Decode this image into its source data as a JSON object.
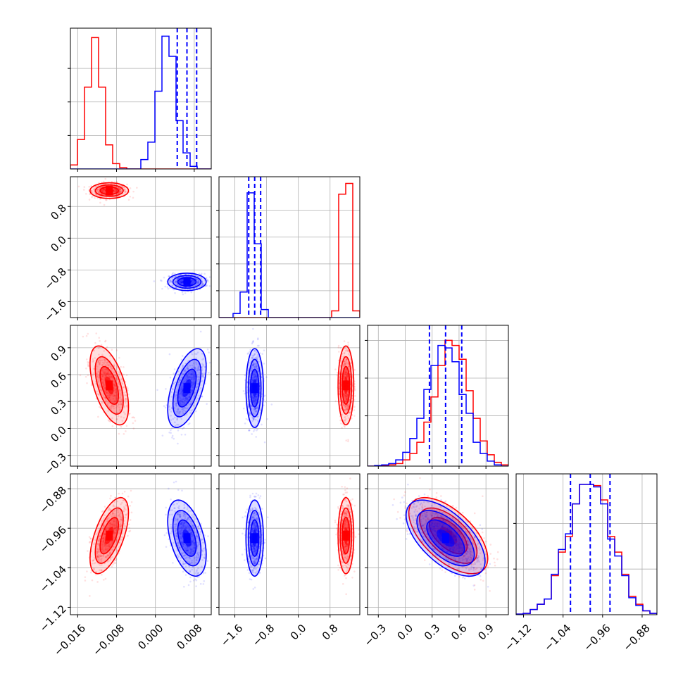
{
  "chart_data": {
    "type": "corner",
    "title": "",
    "n_params": 4,
    "series": [
      {
        "color": "#ff0000",
        "means": [
          -0.0095,
          1.2,
          0.48,
          -0.975
        ],
        "sigmas": [
          0.0018,
          0.09,
          0.2,
          0.035
        ],
        "correlations": [
          [
            0,
            1,
            0.0
          ],
          [
            0,
            2,
            -0.55
          ],
          [
            0,
            3,
            0.6
          ],
          [
            1,
            2,
            0.0
          ],
          [
            1,
            3,
            0.0
          ],
          [
            2,
            3,
            -0.6
          ]
        ],
        "hist_counts": [
          [
            0.03,
            0.22,
            0.61,
            0.98,
            0.61,
            0.18,
            0.04,
            0.01,
            0,
            0,
            0,
            0,
            0,
            0,
            0,
            0,
            0,
            0,
            0,
            0
          ],
          [
            0,
            0,
            0,
            0,
            0,
            0,
            0,
            0,
            0,
            0,
            0,
            0,
            0,
            0,
            0,
            0,
            0.05,
            0.92,
            1.0,
            0.05
          ],
          [
            0,
            0.003,
            0.005,
            0.01,
            0.02,
            0.05,
            0.1,
            0.19,
            0.35,
            0.55,
            0.8,
            1.0,
            0.96,
            0.85,
            0.6,
            0.38,
            0.2,
            0.09,
            0.03,
            0.01
          ],
          [
            0.005,
            0.01,
            0.04,
            0.08,
            0.12,
            0.3,
            0.48,
            0.6,
            0.85,
            1.0,
            1.0,
            0.99,
            0.88,
            0.6,
            0.48,
            0.31,
            0.14,
            0.08,
            0.03,
            0.01
          ]
        ]
      },
      {
        "color": "#0000ff",
        "means": [
          0.0065,
          -1.1,
          0.45,
          -0.98
        ],
        "sigmas": [
          0.0018,
          0.1,
          0.2,
          0.035
        ],
        "correlations": [
          [
            0,
            1,
            0.0
          ],
          [
            0,
            2,
            0.55
          ],
          [
            0,
            3,
            -0.45
          ],
          [
            1,
            2,
            0.0
          ],
          [
            1,
            3,
            0.0
          ],
          [
            2,
            3,
            -0.6
          ]
        ],
        "quantiles": [
          [
            0.0045,
            0.0065,
            0.0085
          ],
          [
            -1.25,
            -1.1,
            -0.95
          ],
          [
            0.27,
            0.45,
            0.63
          ],
          [
            -1.025,
            -0.985,
            -0.945
          ]
        ],
        "hist_counts": [
          [
            0,
            0,
            0,
            0,
            0,
            0,
            0,
            0,
            0,
            0,
            0.07,
            0.2,
            0.58,
            0.99,
            0.84,
            0.36,
            0.12,
            0.02,
            0,
            0
          ],
          [
            0,
            0,
            0.03,
            0.19,
            0.93,
            0.55,
            0.06,
            0,
            0,
            0,
            0,
            0,
            0,
            0,
            0,
            0,
            0,
            0,
            0,
            0
          ],
          [
            0,
            0.005,
            0.01,
            0.02,
            0.05,
            0.11,
            0.22,
            0.38,
            0.61,
            0.8,
            0.96,
            0.94,
            0.83,
            0.57,
            0.42,
            0.19,
            0.1,
            0.04,
            0.01,
            0
          ],
          [
            0.005,
            0.01,
            0.04,
            0.08,
            0.12,
            0.31,
            0.5,
            0.62,
            0.85,
            1.0,
            1.0,
            0.98,
            0.85,
            0.58,
            0.45,
            0.3,
            0.13,
            0.07,
            0.03,
            0.01
          ]
        ]
      }
    ],
    "axes": [
      {
        "range": [
          -0.0175,
          0.0115
        ],
        "hist_ymax": 1.05,
        "hist_ticks": [
          0.25,
          0.5,
          0.75
        ],
        "ticks": [
          -0.016,
          -0.008,
          0.0,
          0.008
        ],
        "tick_labels": [
          "−0.016",
          "−0.008",
          "0.000",
          "0.008"
        ]
      },
      {
        "range": [
          -2.0,
          1.55
        ],
        "hist_ymax": 1.05,
        "hist_ticks": [
          0.2,
          0.4,
          0.6,
          0.8
        ],
        "ticks": [
          -1.6,
          -0.8,
          0.0,
          0.8
        ],
        "tick_labels": [
          "−1.6",
          "−0.8",
          "0.0",
          "0.8"
        ]
      },
      {
        "range": [
          -0.42,
          1.15
        ],
        "hist_ymax": 1.12,
        "hist_ticks": [
          0.4,
          0.7,
          1.0
        ],
        "ticks": [
          -0.3,
          0.0,
          0.3,
          0.6,
          0.9
        ],
        "tick_labels": [
          "−0.3",
          "0.0",
          "0.3",
          "0.6",
          "0.9"
        ]
      },
      {
        "range": [
          -1.135,
          -0.85
        ],
        "hist_ymax": 1.08,
        "hist_ticks": [
          0.35,
          0.7
        ],
        "ticks": [
          -1.12,
          -1.04,
          -0.96,
          -0.88
        ],
        "tick_labels": [
          "−1.12",
          "−1.04",
          "−0.96",
          "−0.88"
        ]
      }
    ],
    "y_tick_labels": [
      [],
      [
        "−1.6",
        "−0.8",
        "0.0",
        "0.8"
      ],
      [
        "−0.3",
        "0.0",
        "0.3",
        "0.6",
        "0.9"
      ],
      [
        "−1.12",
        "−1.04",
        "−0.96",
        "−0.88"
      ]
    ],
    "x_tick_labels_bottom": [
      [
        "−0.016",
        "−0.008",
        "0.000",
        "0.008"
      ],
      [
        "−1.6",
        "−0.8",
        "0.0",
        "0.8"
      ],
      [
        "−0.3",
        "0.0",
        "0.3",
        "0.6",
        "0.9"
      ],
      [
        "−1.12",
        "−1.04",
        "−0.96",
        "−0.88"
      ]
    ],
    "grid": true,
    "contour_levels": 3
  }
}
